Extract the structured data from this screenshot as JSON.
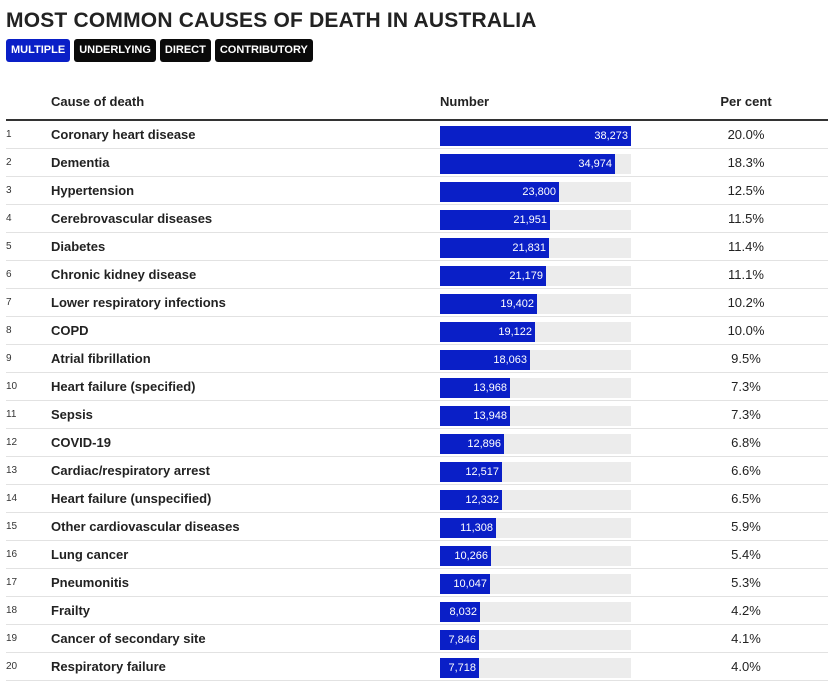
{
  "title": "MOST COMMON CAUSES OF DEATH IN AUSTRALIA",
  "tabs": [
    {
      "label": "MULTIPLE",
      "active": true
    },
    {
      "label": "UNDERLYING",
      "active": false
    },
    {
      "label": "DIRECT",
      "active": false
    },
    {
      "label": "CONTRIBUTORY",
      "active": false
    }
  ],
  "colors": {
    "bar": "#0a1fc7",
    "track": "#ececec",
    "tab": "#0a0a0a"
  },
  "chart_data": {
    "type": "bar",
    "orientation": "horizontal",
    "title": "MOST COMMON CAUSES OF DEATH IN AUSTRALIA",
    "columns": [
      "Cause of death",
      "Number",
      "Per cent"
    ],
    "xlim": [
      0,
      38273
    ],
    "rows": [
      {
        "rank": "1",
        "cause": "Coronary heart disease",
        "value": 38273,
        "label": "38,273",
        "percent": "20.0%"
      },
      {
        "rank": "2",
        "cause": "Dementia",
        "value": 34974,
        "label": "34,974",
        "percent": "18.3%"
      },
      {
        "rank": "3",
        "cause": "Hypertension",
        "value": 23800,
        "label": "23,800",
        "percent": "12.5%"
      },
      {
        "rank": "4",
        "cause": "Cerebrovascular diseases",
        "value": 21951,
        "label": "21,951",
        "percent": "11.5%"
      },
      {
        "rank": "5",
        "cause": "Diabetes",
        "value": 21831,
        "label": "21,831",
        "percent": "11.4%"
      },
      {
        "rank": "6",
        "cause": "Chronic kidney disease",
        "value": 21179,
        "label": "21,179",
        "percent": "11.1%"
      },
      {
        "rank": "7",
        "cause": "Lower respiratory infections",
        "value": 19402,
        "label": "19,402",
        "percent": "10.2%"
      },
      {
        "rank": "8",
        "cause": "COPD",
        "value": 19122,
        "label": "19,122",
        "percent": "10.0%"
      },
      {
        "rank": "9",
        "cause": "Atrial fibrillation",
        "value": 18063,
        "label": "18,063",
        "percent": "9.5%"
      },
      {
        "rank": "10",
        "cause": "Heart failure (specified)",
        "value": 13968,
        "label": "13,968",
        "percent": "7.3%"
      },
      {
        "rank": "11",
        "cause": "Sepsis",
        "value": 13948,
        "label": "13,948",
        "percent": "7.3%"
      },
      {
        "rank": "12",
        "cause": "COVID-19",
        "value": 12896,
        "label": "12,896",
        "percent": "6.8%"
      },
      {
        "rank": "13",
        "cause": "Cardiac/respiratory arrest",
        "value": 12517,
        "label": "12,517",
        "percent": "6.6%"
      },
      {
        "rank": "14",
        "cause": "Heart failure (unspecified)",
        "value": 12332,
        "label": "12,332",
        "percent": "6.5%"
      },
      {
        "rank": "15",
        "cause": "Other cardiovascular diseases",
        "value": 11308,
        "label": "11,308",
        "percent": "5.9%"
      },
      {
        "rank": "16",
        "cause": "Lung cancer",
        "value": 10266,
        "label": "10,266",
        "percent": "5.4%"
      },
      {
        "rank": "17",
        "cause": "Pneumonitis",
        "value": 10047,
        "label": "10,047",
        "percent": "5.3%"
      },
      {
        "rank": "18",
        "cause": "Frailty",
        "value": 8032,
        "label": "8,032",
        "percent": "4.2%"
      },
      {
        "rank": "19",
        "cause": "Cancer of secondary site",
        "value": 7846,
        "label": "7,846",
        "percent": "4.1%"
      },
      {
        "rank": "20",
        "cause": "Respiratory failure",
        "value": 7718,
        "label": "7,718",
        "percent": "4.0%"
      }
    ]
  }
}
